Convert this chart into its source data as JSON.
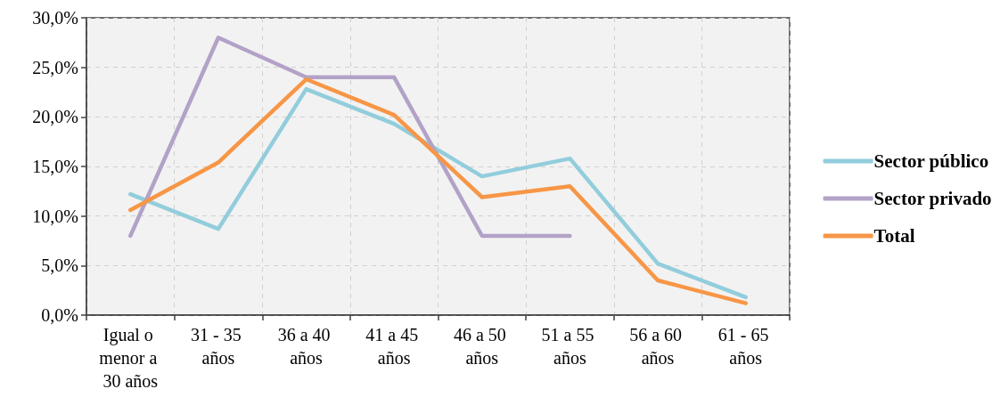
{
  "chart_data": {
    "type": "line",
    "categories": [
      "Igual o menor a 30 años",
      "31 - 35 años",
      "36 a 40 años",
      "41 a 45 años",
      "46 a 50 años",
      "51 a 55 años",
      "56 a 60 años",
      "61 - 65 años"
    ],
    "series": [
      {
        "name": "Sector público",
        "color": "#92cddc",
        "values": [
          12.2,
          8.7,
          22.8,
          19.3,
          14.0,
          15.8,
          5.2,
          1.8
        ]
      },
      {
        "name": "Sector privado",
        "color": "#b3a2c7",
        "values": [
          8.0,
          28.0,
          24.0,
          24.0,
          8.0,
          8.0,
          null,
          null
        ]
      },
      {
        "name": "Total",
        "color": "#f79646",
        "values": [
          10.6,
          15.4,
          23.8,
          20.2,
          11.9,
          13.0,
          3.5,
          1.2
        ]
      }
    ],
    "ylim": [
      0,
      30
    ],
    "yticks": [
      {
        "value": 0,
        "label": "0,0%"
      },
      {
        "value": 5,
        "label": "5,0%"
      },
      {
        "value": 10,
        "label": "10,0%"
      },
      {
        "value": 15,
        "label": "15,0%"
      },
      {
        "value": 20,
        "label": "20,0%"
      },
      {
        "value": 25,
        "label": "25,0%"
      },
      {
        "value": 30,
        "label": "30,0%"
      }
    ],
    "grid": true,
    "legend": "right",
    "marker": "none",
    "line_style": "solid"
  }
}
